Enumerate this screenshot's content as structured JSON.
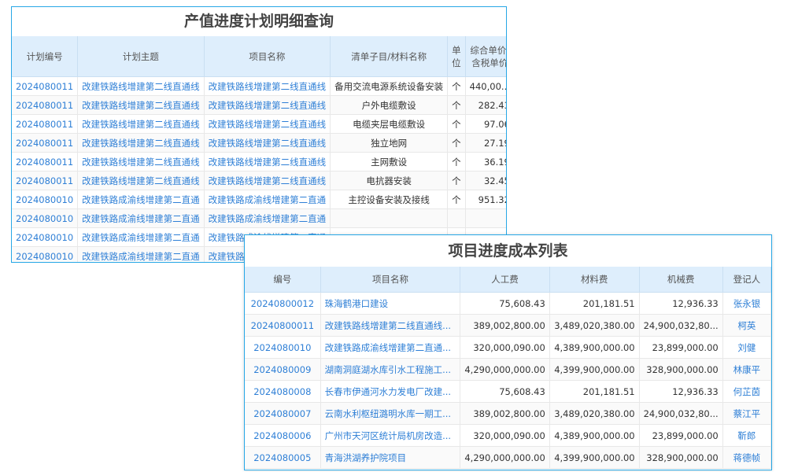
{
  "plan_panel": {
    "title": "产值进度计划明细查询",
    "headers": [
      "计划编号",
      "计划主题",
      "项目名称",
      "清单子目/材料名称",
      "单位",
      "综合单价/含税单价"
    ],
    "rows": [
      [
        "2024080011",
        "改建铁路线增建第二线直通线",
        "改建铁路线增建第二线直通线",
        "备用交流电源系统设备安装",
        "个",
        "440,00..."
      ],
      [
        "2024080011",
        "改建铁路线增建第二线直通线",
        "改建铁路线增建第二线直通线",
        "户外电缆敷设",
        "个",
        "282.43"
      ],
      [
        "2024080011",
        "改建铁路线增建第二线直通线",
        "改建铁路线增建第二线直通线",
        "电缆夹层电缆敷设",
        "个",
        "97.06"
      ],
      [
        "2024080011",
        "改建铁路线增建第二线直通线",
        "改建铁路线增建第二线直通线",
        "独立地网",
        "个",
        "27.19"
      ],
      [
        "2024080011",
        "改建铁路线增建第二线直通线",
        "改建铁路线增建第二线直通线",
        "主网敷设",
        "个",
        "36.19"
      ],
      [
        "2024080011",
        "改建铁路线增建第二线直通线",
        "改建铁路线增建第二线直通线",
        "电抗器安装",
        "个",
        "32.45"
      ],
      [
        "2024080010",
        "改建铁路成渝线增建第二直通",
        "改建铁路成渝线增建第二直通",
        "主控设备安装及接线",
        "个",
        "951.32"
      ],
      [
        "2024080010",
        "改建铁路成渝线增建第二直通",
        "改建铁路成渝线增建第二直通",
        "",
        "",
        ""
      ],
      [
        "2024080010",
        "改建铁路成渝线增建第二直通",
        "改建铁路成渝线增建第二直通",
        "",
        "",
        ""
      ],
      [
        "2024080010",
        "改建铁路成渝线增建第二直通",
        "改建铁路成渝线增建第二直通",
        "",
        "",
        ""
      ]
    ]
  },
  "cost_panel": {
    "title": "项目进度成本列表",
    "headers": [
      "编号",
      "项目名称",
      "人工费",
      "材料费",
      "机械费",
      "登记人"
    ],
    "rows": [
      [
        "20240800012",
        "珠海鹤港口建设",
        "75,608.43",
        "201,181.51",
        "12,936.33",
        "张永银"
      ],
      [
        "20240800011",
        "改建铁路线增建第二线直通线...",
        "389,002,800.00",
        "3,489,020,380.00",
        "24,900,032,80...",
        "柯英"
      ],
      [
        "2024080010",
        "改建铁路成渝线增建第二直通...",
        "320,000,090.00",
        "4,389,900,000.00",
        "23,899,000.00",
        "刘健"
      ],
      [
        "2024080009",
        "湖南洞庭湖水库引水工程施工...",
        "4,290,000,000.00",
        "4,399,900,000.00",
        "328,900,000.00",
        "林康平"
      ],
      [
        "2024080008",
        "长春市伊通河水力发电厂改建...",
        "75,608.43",
        "201,181.51",
        "12,936.33",
        "何芷茵"
      ],
      [
        "2024080007",
        "云南水利枢纽潞明水库一期工...",
        "389,002,800.00",
        "3,489,020,380.00",
        "24,900,032,80...",
        "蔡江平"
      ],
      [
        "2024080006",
        "广州市天河区统计局机房改造...",
        "320,000,090.00",
        "4,389,900,000.00",
        "23,899,000.00",
        "靳郎"
      ],
      [
        "2024080005",
        "青海洪湖养护院项目",
        "4,290,000,000.00",
        "4,399,900,000.00",
        "328,900,000.00",
        "蒋德帧"
      ]
    ]
  },
  "colors": {
    "border": "#27a7e6",
    "header_bg": "#deeefc",
    "link": "#2e7fd6"
  }
}
